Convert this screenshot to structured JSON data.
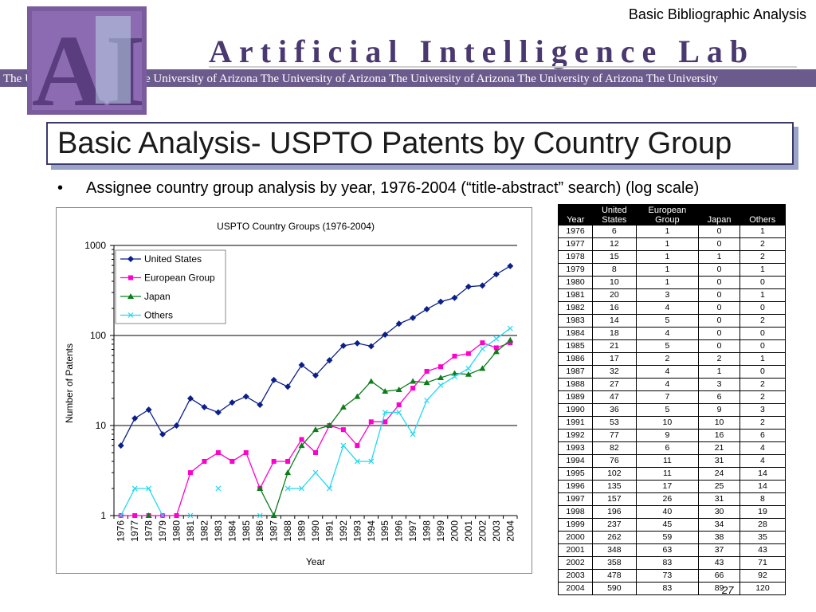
{
  "header": {
    "section_label": "Basic Bibliographic Analysis",
    "logo_text": "Artificial Intelligence Lab",
    "logo_mark": "AI",
    "logo_banner": "The University of Arizona The University of Arizona The University of Arizona The University of Arizona The University of Arizona The University"
  },
  "slide": {
    "title": "Basic Analysis- USPTO Patents by Country Group",
    "bullet": "Assignee country group analysis by year, 1976-2004 (“title-abstract” search) (log scale)",
    "page_number": "27"
  },
  "chart_data": {
    "type": "line",
    "title": "USPTO Country Groups (1976-2004)",
    "xlabel": "Year",
    "ylabel": "Number of Patents",
    "y_scale": "log",
    "ylim": [
      1,
      1000
    ],
    "y_ticks": [
      "1",
      "10",
      "100",
      "1000"
    ],
    "grid": "horizontal major gridlines",
    "legend_position": "top-left",
    "categories": [
      "1976",
      "1977",
      "1978",
      "1979",
      "1980",
      "1981",
      "1982",
      "1983",
      "1984",
      "1985",
      "1986",
      "1987",
      "1988",
      "1989",
      "1990",
      "1991",
      "1992",
      "1993",
      "1994",
      "1995",
      "1996",
      "1997",
      "1998",
      "1999",
      "2000",
      "2001",
      "2002",
      "2003",
      "2004"
    ],
    "series": [
      {
        "name": "United States",
        "color": "#0b1f8a",
        "marker": "diamond",
        "values": [
          6,
          12,
          15,
          8,
          10,
          20,
          16,
          14,
          18,
          21,
          17,
          32,
          27,
          47,
          36,
          53,
          77,
          82,
          76,
          102,
          135,
          157,
          196,
          237,
          262,
          348,
          358,
          478,
          590
        ]
      },
      {
        "name": "European Group",
        "color": "#ff00cc",
        "marker": "square",
        "values": [
          1,
          1,
          1,
          1,
          1,
          3,
          4,
          5,
          4,
          5,
          2,
          4,
          4,
          7,
          5,
          10,
          9,
          6,
          11,
          11,
          17,
          26,
          40,
          45,
          59,
          63,
          83,
          73,
          83
        ]
      },
      {
        "name": "Japan",
        "color": "#0b7d1a",
        "marker": "triangle",
        "values": [
          0,
          0,
          1,
          0,
          0,
          0,
          0,
          0,
          0,
          0,
          2,
          1,
          3,
          6,
          9,
          10,
          16,
          21,
          31,
          24,
          25,
          31,
          30,
          34,
          38,
          37,
          43,
          66,
          89
        ]
      },
      {
        "name": "Others",
        "color": "#22d8f0",
        "marker": "x",
        "values": [
          1,
          2,
          2,
          1,
          0,
          1,
          0,
          2,
          0,
          0,
          1,
          0,
          2,
          2,
          3,
          2,
          6,
          4,
          4,
          14,
          14,
          8,
          19,
          28,
          35,
          43,
          71,
          92,
          120
        ]
      }
    ]
  },
  "table": {
    "headers": [
      {
        "line1": "",
        "line2": "Year"
      },
      {
        "line1": "United",
        "line2": "States"
      },
      {
        "line1": "European",
        "line2": "Group"
      },
      {
        "line1": "",
        "line2": "Japan"
      },
      {
        "line1": "",
        "line2": "Others"
      }
    ],
    "rows": [
      [
        "1976",
        "6",
        "1",
        "0",
        "1"
      ],
      [
        "1977",
        "12",
        "1",
        "0",
        "2"
      ],
      [
        "1978",
        "15",
        "1",
        "1",
        "2"
      ],
      [
        "1979",
        "8",
        "1",
        "0",
        "1"
      ],
      [
        "1980",
        "10",
        "1",
        "0",
        "0"
      ],
      [
        "1981",
        "20",
        "3",
        "0",
        "1"
      ],
      [
        "1982",
        "16",
        "4",
        "0",
        "0"
      ],
      [
        "1983",
        "14",
        "5",
        "0",
        "2"
      ],
      [
        "1984",
        "18",
        "4",
        "0",
        "0"
      ],
      [
        "1985",
        "21",
        "5",
        "0",
        "0"
      ],
      [
        "1986",
        "17",
        "2",
        "2",
        "1"
      ],
      [
        "1987",
        "32",
        "4",
        "1",
        "0"
      ],
      [
        "1988",
        "27",
        "4",
        "3",
        "2"
      ],
      [
        "1989",
        "47",
        "7",
        "6",
        "2"
      ],
      [
        "1990",
        "36",
        "5",
        "9",
        "3"
      ],
      [
        "1991",
        "53",
        "10",
        "10",
        "2"
      ],
      [
        "1992",
        "77",
        "9",
        "16",
        "6"
      ],
      [
        "1993",
        "82",
        "6",
        "21",
        "4"
      ],
      [
        "1994",
        "76",
        "11",
        "31",
        "4"
      ],
      [
        "1995",
        "102",
        "11",
        "24",
        "14"
      ],
      [
        "1996",
        "135",
        "17",
        "25",
        "14"
      ],
      [
        "1997",
        "157",
        "26",
        "31",
        "8"
      ],
      [
        "1998",
        "196",
        "40",
        "30",
        "19"
      ],
      [
        "1999",
        "237",
        "45",
        "34",
        "28"
      ],
      [
        "2000",
        "262",
        "59",
        "38",
        "35"
      ],
      [
        "2001",
        "348",
        "63",
        "37",
        "43"
      ],
      [
        "2002",
        "358",
        "83",
        "43",
        "71"
      ],
      [
        "2003",
        "478",
        "73",
        "66",
        "92"
      ],
      [
        "2004",
        "590",
        "83",
        "89",
        "120"
      ]
    ]
  }
}
